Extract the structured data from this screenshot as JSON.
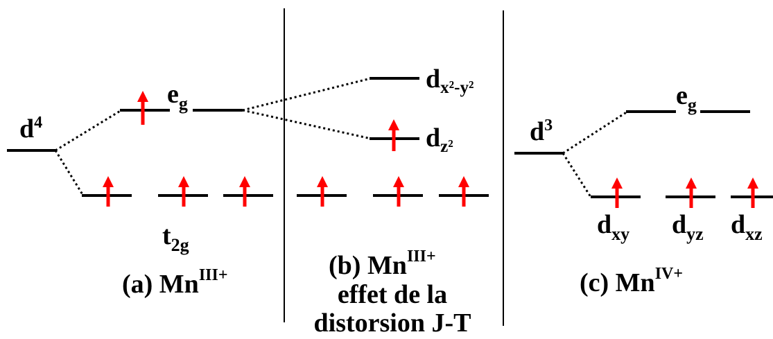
{
  "panel_a": {
    "label_prefix": "(a) Mn",
    "label_sup": "III+",
    "d_label": "d",
    "d_sup": "4",
    "eg_label": "e",
    "eg_sub": "g",
    "t2g_label": "t",
    "t2g_sub": "2g"
  },
  "panel_b": {
    "label_line1_prefix": "(b) Mn",
    "label_line1_sup": "III+",
    "label_line2": "effet de la",
    "label_line3": "distorsion J-T",
    "dx2y2_label": "d",
    "dx2y2_sub": "x²-y²",
    "dz2_label": "d",
    "dz2_sub": "z²"
  },
  "panel_c": {
    "label_prefix": "(c) Mn",
    "label_sup": "IV+",
    "d_label": "d",
    "d_sup": "3",
    "eg_label": "e",
    "eg_sub": "g",
    "dxy_label": "d",
    "dxy_sub": "xy",
    "dyz_label": "d",
    "dyz_sub": "yz",
    "dxz_label": "d",
    "dxz_sub": "xz"
  },
  "colors": {
    "arrow": "#ff0000",
    "line": "#000000"
  },
  "electron_counts": {
    "panel_a": 4,
    "panel_b": 4,
    "panel_c": 3
  }
}
